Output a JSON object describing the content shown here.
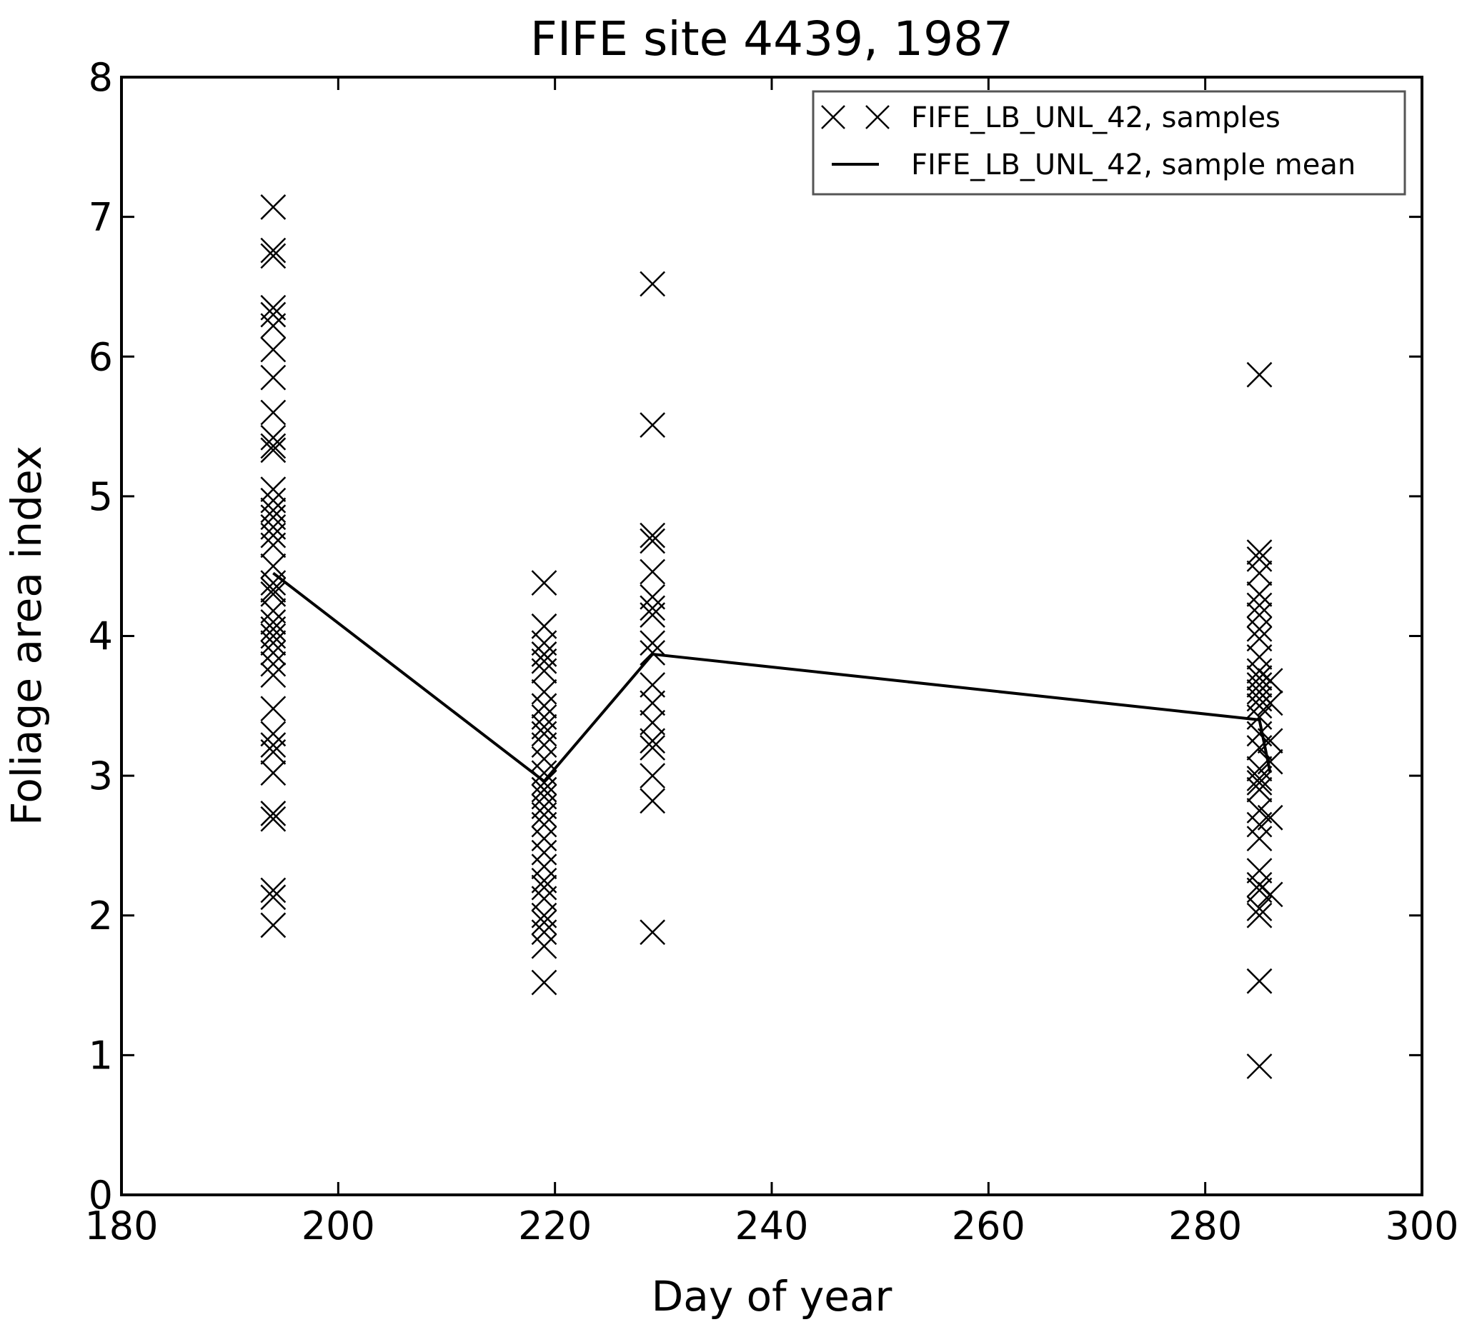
{
  "chart_data": {
    "type": "scatter",
    "title": "FIFE site 4439, 1987",
    "xlabel": "Day of year",
    "ylabel": "Foliage area index",
    "xlim": [
      180,
      300
    ],
    "ylim": [
      0,
      8
    ],
    "xticks": [
      "180",
      "200",
      "220",
      "240",
      "260",
      "280",
      "300"
    ],
    "yticks": [
      "0",
      "1",
      "2",
      "3",
      "4",
      "5",
      "6",
      "7",
      "8"
    ],
    "grid": false,
    "legend": {
      "position": "top-right"
    },
    "series": [
      {
        "name": "FIFE_LB_UNL_42, samples",
        "marker": "x",
        "color": "#000000",
        "points": [
          [
            194,
            7.07
          ],
          [
            194,
            6.76
          ],
          [
            194,
            6.72
          ],
          [
            194,
            6.35
          ],
          [
            194,
            6.3
          ],
          [
            194,
            6.22
          ],
          [
            194,
            6.05
          ],
          [
            194,
            5.85
          ],
          [
            194,
            5.6
          ],
          [
            194,
            5.42
          ],
          [
            194,
            5.36
          ],
          [
            194,
            5.33
          ],
          [
            194,
            5.05
          ],
          [
            194,
            4.97
          ],
          [
            194,
            4.9
          ],
          [
            194,
            4.85
          ],
          [
            194,
            4.78
          ],
          [
            194,
            4.72
          ],
          [
            194,
            4.65
          ],
          [
            194,
            4.5
          ],
          [
            194,
            4.38
          ],
          [
            194,
            4.33
          ],
          [
            194,
            4.3
          ],
          [
            194,
            4.18
          ],
          [
            194,
            4.1
          ],
          [
            194,
            4.05
          ],
          [
            194,
            4.0
          ],
          [
            194,
            3.95
          ],
          [
            194,
            3.88
          ],
          [
            194,
            3.8
          ],
          [
            194,
            3.72
          ],
          [
            194,
            3.48
          ],
          [
            194,
            3.3
          ],
          [
            194,
            3.22
          ],
          [
            194,
            3.17
          ],
          [
            194,
            3.02
          ],
          [
            194,
            2.73
          ],
          [
            194,
            2.69
          ],
          [
            194,
            2.18
          ],
          [
            194,
            2.13
          ],
          [
            194,
            1.93
          ],
          [
            219,
            4.38
          ],
          [
            219,
            4.07
          ],
          [
            219,
            3.95
          ],
          [
            219,
            3.87
          ],
          [
            219,
            3.82
          ],
          [
            219,
            3.75
          ],
          [
            219,
            3.6
          ],
          [
            219,
            3.5
          ],
          [
            219,
            3.42
          ],
          [
            219,
            3.35
          ],
          [
            219,
            3.3
          ],
          [
            219,
            3.22
          ],
          [
            219,
            3.12
          ],
          [
            219,
            3.02
          ],
          [
            219,
            2.95
          ],
          [
            219,
            2.9
          ],
          [
            219,
            2.85
          ],
          [
            219,
            2.78
          ],
          [
            219,
            2.72
          ],
          [
            219,
            2.65
          ],
          [
            219,
            2.55
          ],
          [
            219,
            2.45
          ],
          [
            219,
            2.35
          ],
          [
            219,
            2.25
          ],
          [
            219,
            2.2
          ],
          [
            219,
            2.12
          ],
          [
            219,
            2.0
          ],
          [
            219,
            1.95
          ],
          [
            219,
            1.88
          ],
          [
            219,
            1.78
          ],
          [
            219,
            1.52
          ],
          [
            229,
            6.52
          ],
          [
            229,
            5.51
          ],
          [
            229,
            4.72
          ],
          [
            229,
            4.68
          ],
          [
            229,
            4.46
          ],
          [
            229,
            4.28
          ],
          [
            229,
            4.2
          ],
          [
            229,
            4.15
          ],
          [
            229,
            3.95
          ],
          [
            229,
            3.88
          ],
          [
            229,
            3.65
          ],
          [
            229,
            3.52
          ],
          [
            229,
            3.38
          ],
          [
            229,
            3.25
          ],
          [
            229,
            3.2
          ],
          [
            229,
            3.0
          ],
          [
            229,
            2.82
          ],
          [
            229,
            1.88
          ],
          [
            285,
            5.87
          ],
          [
            285,
            4.6
          ],
          [
            285,
            4.55
          ],
          [
            285,
            4.45
          ],
          [
            285,
            4.3
          ],
          [
            285,
            4.22
          ],
          [
            285,
            4.15
          ],
          [
            285,
            4.05
          ],
          [
            285,
            3.98
          ],
          [
            285,
            3.85
          ],
          [
            285,
            3.75
          ],
          [
            285,
            3.7
          ],
          [
            285,
            3.65
          ],
          [
            285,
            3.6
          ],
          [
            285,
            3.55
          ],
          [
            285,
            3.5
          ],
          [
            285,
            3.42
          ],
          [
            285,
            3.3
          ],
          [
            285,
            3.2
          ],
          [
            285,
            3.05
          ],
          [
            285,
            2.98
          ],
          [
            285,
            2.95
          ],
          [
            285,
            2.9
          ],
          [
            285,
            2.75
          ],
          [
            285,
            2.65
          ],
          [
            285,
            2.55
          ],
          [
            285,
            2.32
          ],
          [
            285,
            2.22
          ],
          [
            285,
            2.18
          ],
          [
            285,
            2.05
          ],
          [
            285,
            2.0
          ],
          [
            285,
            1.53
          ],
          [
            285,
            0.92
          ],
          [
            286,
            3.68
          ],
          [
            286,
            3.52
          ],
          [
            286,
            3.25
          ],
          [
            286,
            3.1
          ],
          [
            286,
            2.7
          ],
          [
            286,
            2.15
          ]
        ]
      },
      {
        "name": "FIFE_LB_UNL_42, sample mean",
        "marker": "line",
        "color": "#000000",
        "points": [
          [
            194,
            4.45
          ],
          [
            219,
            2.96
          ],
          [
            229,
            3.87
          ],
          [
            285,
            3.4
          ],
          [
            286,
            3.02
          ]
        ]
      }
    ]
  }
}
